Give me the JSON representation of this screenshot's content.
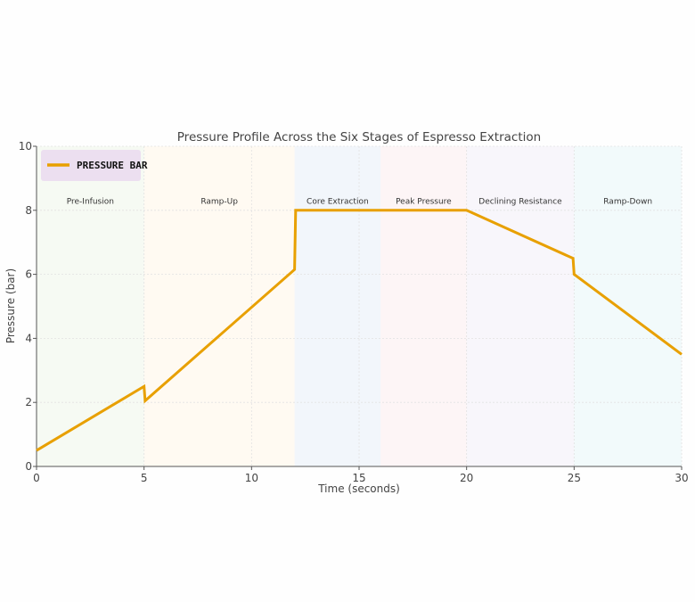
{
  "chart_data": {
    "type": "line",
    "title": "Pressure Profile Across the Six Stages of Espresso Extraction",
    "xlabel": "Time (seconds)",
    "ylabel": "Pressure (bar)",
    "xlim": [
      0,
      30
    ],
    "ylim": [
      0,
      10
    ],
    "xticks": [
      0,
      5,
      10,
      15,
      20,
      25,
      30
    ],
    "yticks": [
      0,
      2,
      4,
      6,
      8,
      10
    ],
    "grid": true,
    "legend_placement": "top-left",
    "series": [
      {
        "name": "PRESSURE BAR",
        "color": "#e8a000",
        "x": [
          0,
          5,
          5.05,
          12,
          12.05,
          20,
          24.95,
          25,
          30
        ],
        "y": [
          0.5,
          2.5,
          2.05,
          6.15,
          8,
          8,
          6.5,
          6,
          3.5
        ]
      }
    ],
    "stages": [
      {
        "label": "Pre-Infusion",
        "start": 0,
        "end": 5,
        "color": "#f6faf3"
      },
      {
        "label": "Ramp-Up",
        "start": 5,
        "end": 12,
        "color": "#fffaf2"
      },
      {
        "label": "Core Extraction",
        "start": 12,
        "end": 16,
        "color": "#f2f6fb"
      },
      {
        "label": "Peak Pressure",
        "start": 16,
        "end": 20,
        "color": "#fdf5f6"
      },
      {
        "label": "Declining Resistance",
        "start": 20,
        "end": 25,
        "color": "#f8f6fb"
      },
      {
        "label": "Ramp-Down",
        "start": 25,
        "end": 30,
        "color": "#f2fafb"
      }
    ],
    "legend_background": "#ecdff0"
  }
}
